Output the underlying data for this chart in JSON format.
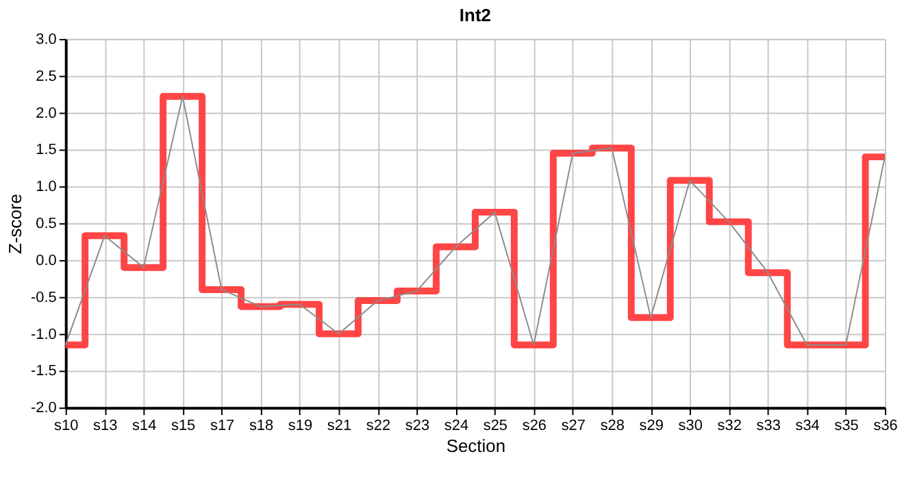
{
  "chart_data": {
    "type": "step",
    "title": "Int2",
    "xlabel": "Section",
    "ylabel": "Z-score",
    "categories": [
      "s10",
      "s13",
      "s14",
      "s15",
      "s17",
      "s18",
      "s19",
      "s21",
      "s22",
      "s23",
      "s24",
      "s25",
      "s26",
      "s27",
      "s28",
      "s29",
      "s30",
      "s32",
      "s33",
      "s34",
      "s35",
      "s36"
    ],
    "series": [
      {
        "color": "#ff3b3b",
        "values": [
          -1.15,
          0.33,
          -0.1,
          2.22,
          -0.4,
          -0.63,
          -0.6,
          -1.0,
          -0.55,
          -0.42,
          0.18,
          0.65,
          -1.15,
          1.45,
          1.52,
          -0.78,
          1.08,
          0.52,
          -0.17,
          -1.15,
          -1.15,
          1.4
        ]
      },
      {
        "type": "line",
        "color": "#8c8c8c",
        "values": [
          -1.15,
          0.33,
          -0.1,
          2.22,
          -0.4,
          -0.63,
          -0.6,
          -1.0,
          -0.55,
          -0.42,
          0.18,
          0.65,
          -1.15,
          1.45,
          1.52,
          -0.78,
          1.08,
          0.52,
          -0.17,
          -1.15,
          -1.15,
          1.4
        ]
      }
    ],
    "ylim": [
      -2.0,
      3.0
    ],
    "yticks": [
      {
        "value": -2,
        "label": "-2.0"
      },
      {
        "value": -1.5,
        "label": "-1.5"
      },
      {
        "value": -1,
        "label": "-1.0"
      },
      {
        "value": -0.5,
        "label": "-0.5"
      },
      {
        "value": 0,
        "label": "0.0"
      },
      {
        "value": 0.5,
        "label": "0.5"
      },
      {
        "value": 1,
        "label": "1.0"
      },
      {
        "value": 1.5,
        "label": "1.5"
      },
      {
        "value": 2,
        "label": "2.0"
      },
      {
        "value": 2.5,
        "label": "2.5"
      },
      {
        "value": 3,
        "label": "3.0"
      }
    ],
    "grid": true,
    "marker": "none",
    "line_style": "solid"
  }
}
